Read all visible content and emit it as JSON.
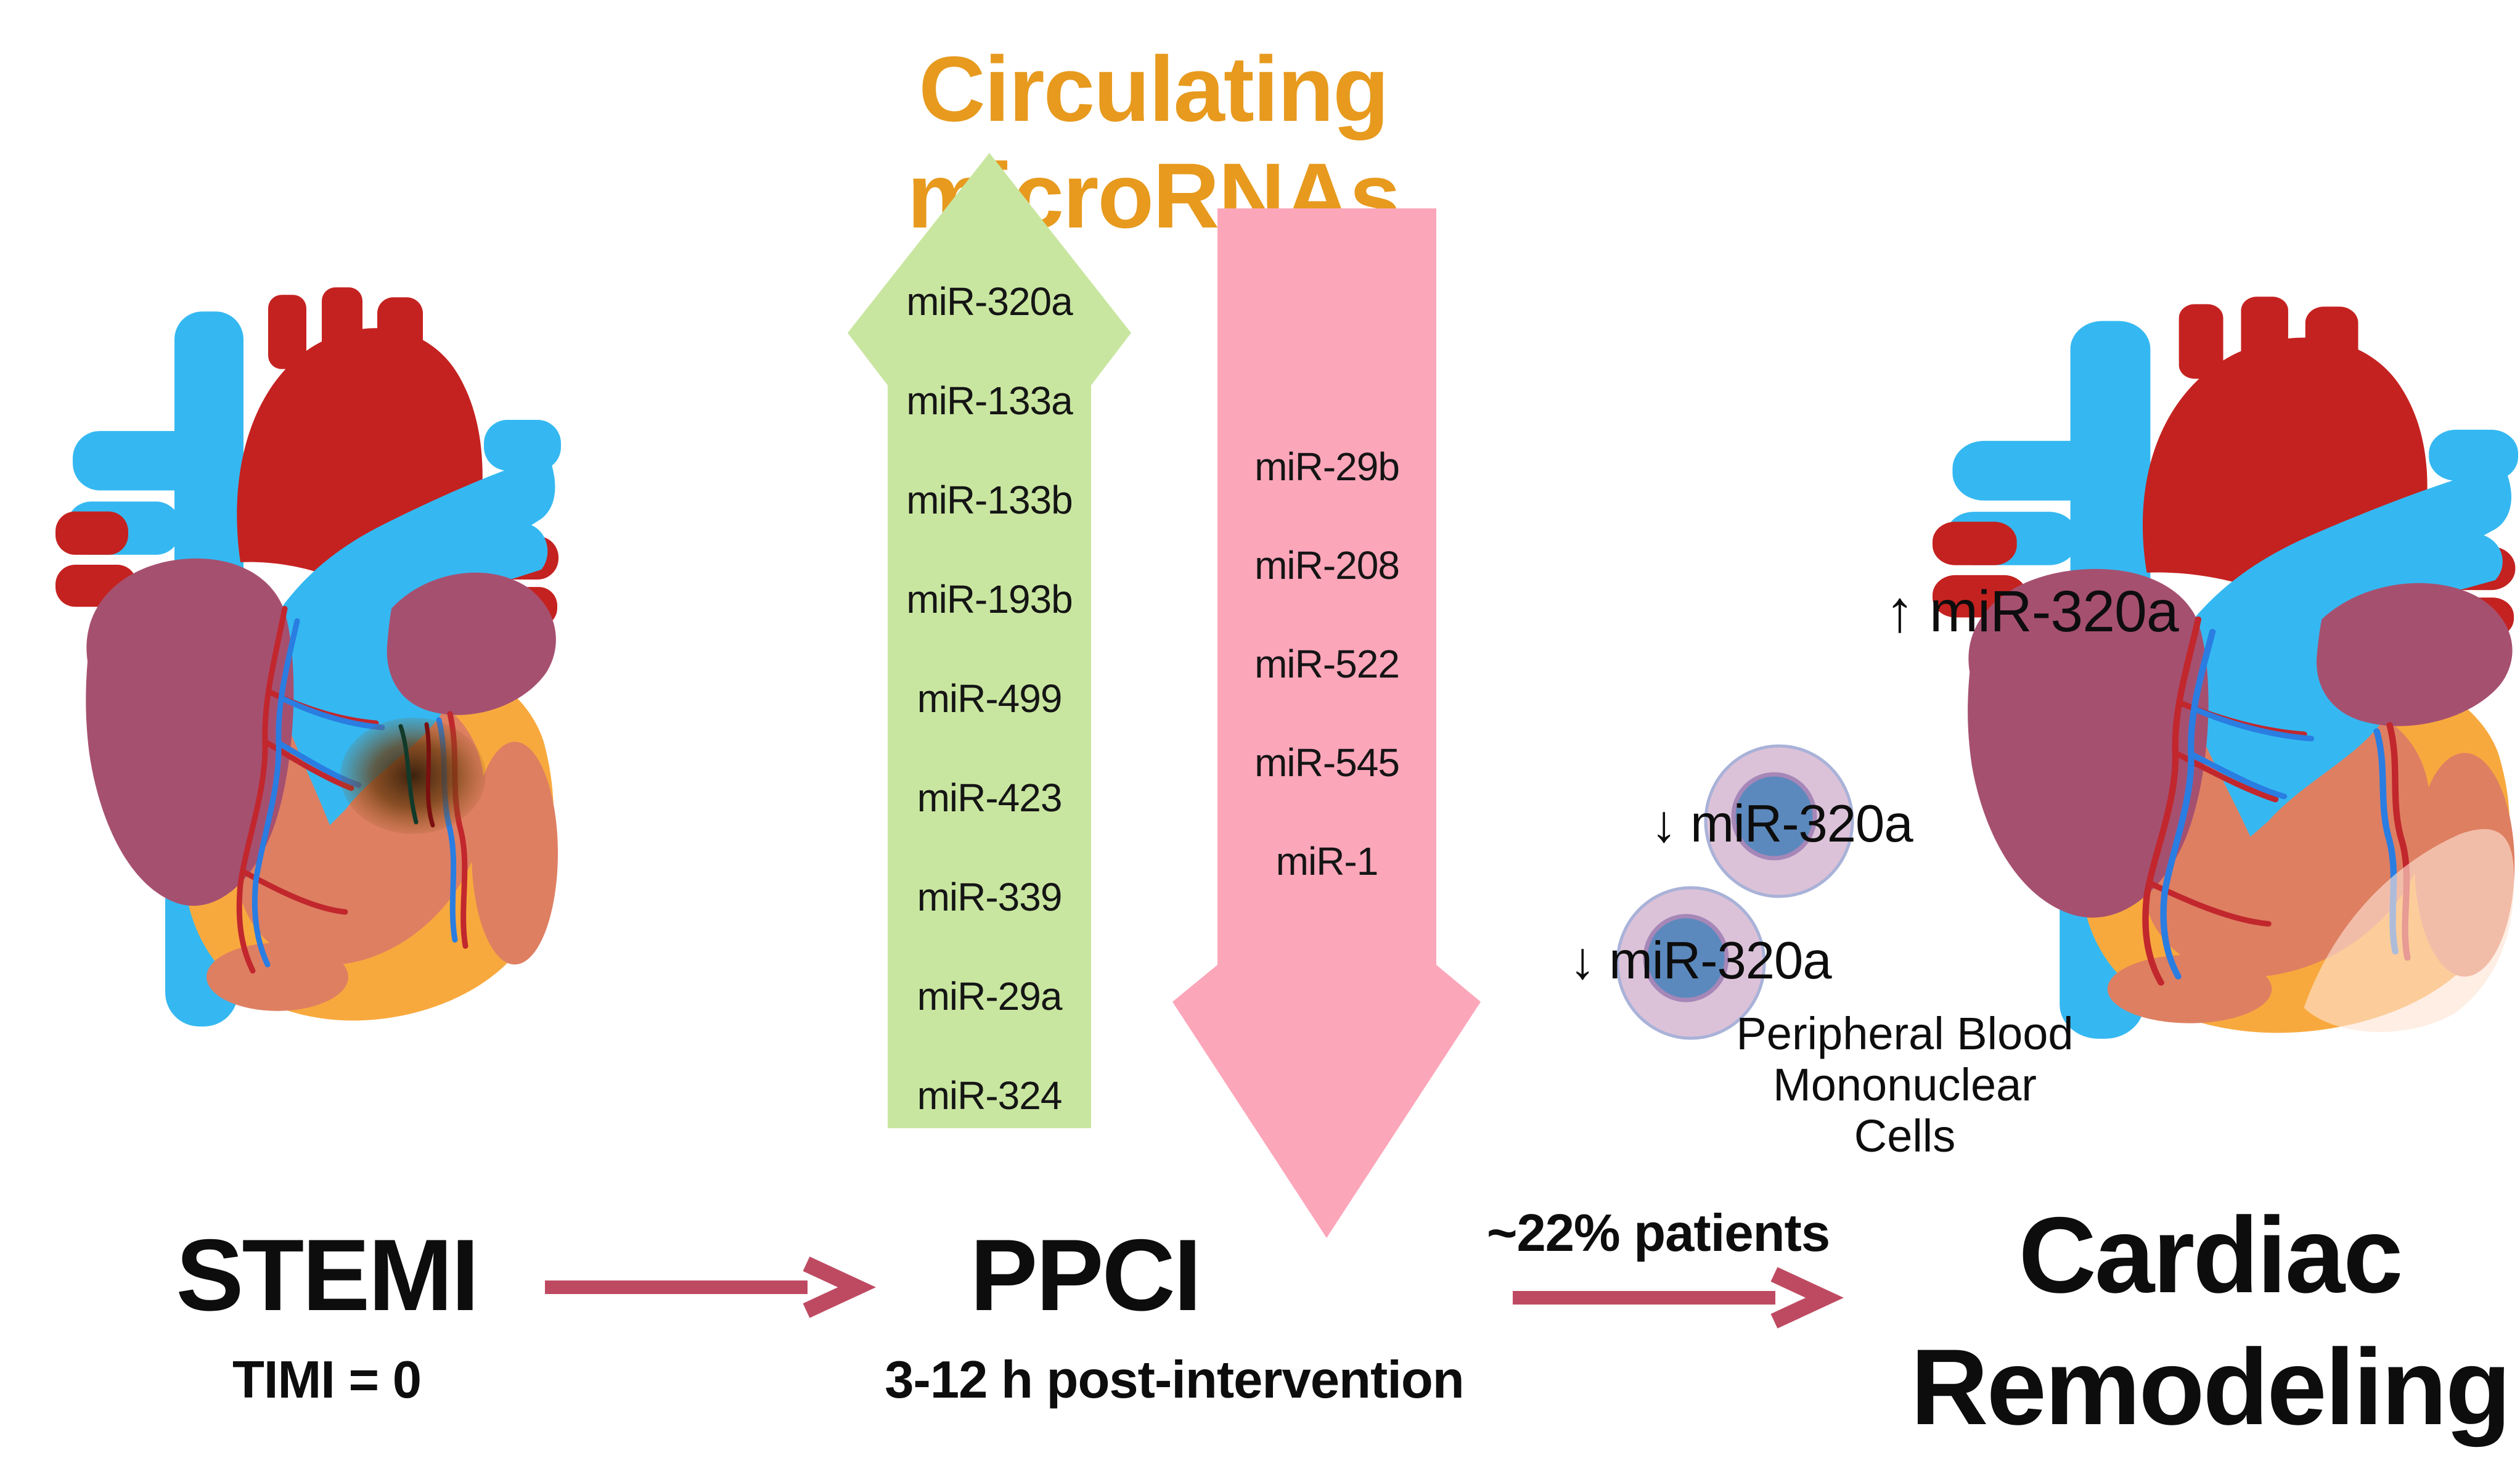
{
  "title": "Circulating microRNAs",
  "colors": {
    "title_orange": "#E79A1E",
    "green_arrow": "#C9E6A0",
    "pink_arrow": "#FCA6BA",
    "flow_arrow_crimson": "#BE4A62",
    "heart_blue": "#35B8F1",
    "heart_red": "#C42220",
    "heart_mauve": "#A65070",
    "heart_orange": "#F8A93E",
    "heart_salmon": "#DE7F62",
    "infarct_brown": "#4A2A10",
    "cell_cytoplasm": "#DCC2D8",
    "cell_rim": "#A9B2D8",
    "cell_nucleus": "#5C89BD"
  },
  "upregulated": {
    "direction": "up",
    "items": [
      "miR-320a",
      "miR-133a",
      "miR-133b",
      "miR-193b",
      "miR-499",
      "miR-423",
      "miR-339",
      "miR-29a",
      "miR-324"
    ]
  },
  "downregulated": {
    "direction": "down",
    "items": [
      "miR-29b",
      "miR-208",
      "miR-522",
      "miR-545",
      "miR-1"
    ]
  },
  "stemi": {
    "title": "STEMI",
    "subtitle": "TIMI = 0"
  },
  "ppci": {
    "title": "PPCI",
    "subtitle": "3-12 h post-intervention"
  },
  "flow2_label": "~22% patients",
  "cardiac": {
    "line1": "Cardiac",
    "line2": "Remodeling"
  },
  "heart_annotation": {
    "arrow": "↑",
    "text": "miR-320a"
  },
  "pbmc": {
    "cell1": {
      "arrow": "↓",
      "text": "miR-320a"
    },
    "cell2": {
      "arrow": "↓",
      "text": "miR-320a"
    },
    "caption_line1": "Peripheral Blood",
    "caption_line2": "Mononuclear Cells"
  }
}
